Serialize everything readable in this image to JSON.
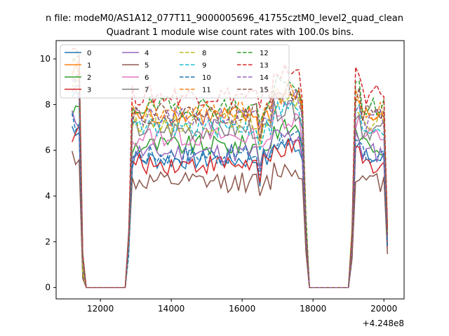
{
  "chart_data": {
    "type": "line",
    "suptitle": "n file: modeM0/AS1A12_077T11_9000005696_41755cztM0_level2_quad_clean",
    "title": "Quadrant 1 module wise count rates with 100.0s bins.",
    "xlabel": "",
    "ylabel": "",
    "x_offset_label": "+4.248e8",
    "xlim": [
      10750,
      20570
    ],
    "ylim": [
      -0.5,
      10.8
    ],
    "xticks": [
      {
        "value": 12000,
        "label": "12000"
      },
      {
        "value": 14000,
        "label": "14000"
      },
      {
        "value": 16000,
        "label": "16000"
      },
      {
        "value": 18000,
        "label": "18000"
      },
      {
        "value": 20000,
        "label": "20000"
      }
    ],
    "yticks": [
      {
        "value": 0,
        "label": "0"
      },
      {
        "value": 2,
        "label": "2"
      },
      {
        "value": 4,
        "label": "4"
      },
      {
        "value": 6,
        "label": "6"
      },
      {
        "value": 8,
        "label": "8"
      },
      {
        "value": 10,
        "label": "10"
      }
    ],
    "grid": false,
    "legend_position": "top-left",
    "legend_columns": 4,
    "x_start": 11200,
    "x_step": 100,
    "x_end": 20100,
    "active_intervals": [
      [
        11200,
        11500
      ],
      [
        12800,
        17800
      ],
      [
        19100,
        20100
      ]
    ],
    "series": [
      {
        "name": "0",
        "color": "#1f77b4",
        "dash": "solid",
        "level": 5.6
      },
      {
        "name": "1",
        "color": "#ff7f0e",
        "dash": "solid",
        "level": 7.5
      },
      {
        "name": "2",
        "color": "#2ca02c",
        "dash": "solid",
        "level": 6.2
      },
      {
        "name": "3",
        "color": "#d62728",
        "dash": "solid",
        "level": 5.4
      },
      {
        "name": "4",
        "color": "#9467bd",
        "dash": "solid",
        "level": 5.9
      },
      {
        "name": "5",
        "color": "#8c564b",
        "dash": "solid",
        "level": 4.6
      },
      {
        "name": "6",
        "color": "#e377c2",
        "dash": "solid",
        "level": 6.6
      },
      {
        "name": "7",
        "color": "#7f7f7f",
        "dash": "solid",
        "level": 6.9
      },
      {
        "name": "8",
        "color": "#bcbd22",
        "dash": "dashed",
        "level": 7.2
      },
      {
        "name": "9",
        "color": "#17becf",
        "dash": "dashed",
        "level": 7.0
      },
      {
        "name": "10",
        "color": "#1f77b4",
        "dash": "dashed",
        "level": 5.8
      },
      {
        "name": "11",
        "color": "#ff7f0e",
        "dash": "dashed",
        "level": 7.7
      },
      {
        "name": "12",
        "color": "#2ca02c",
        "dash": "dashed",
        "level": 7.9
      },
      {
        "name": "13",
        "color": "#d62728",
        "dash": "dashed",
        "level": 8.4
      },
      {
        "name": "14",
        "color": "#9467bd",
        "dash": "dashed",
        "level": 7.4
      },
      {
        "name": "15",
        "color": "#8c564b",
        "dash": "dashed",
        "level": 7.6
      }
    ]
  }
}
